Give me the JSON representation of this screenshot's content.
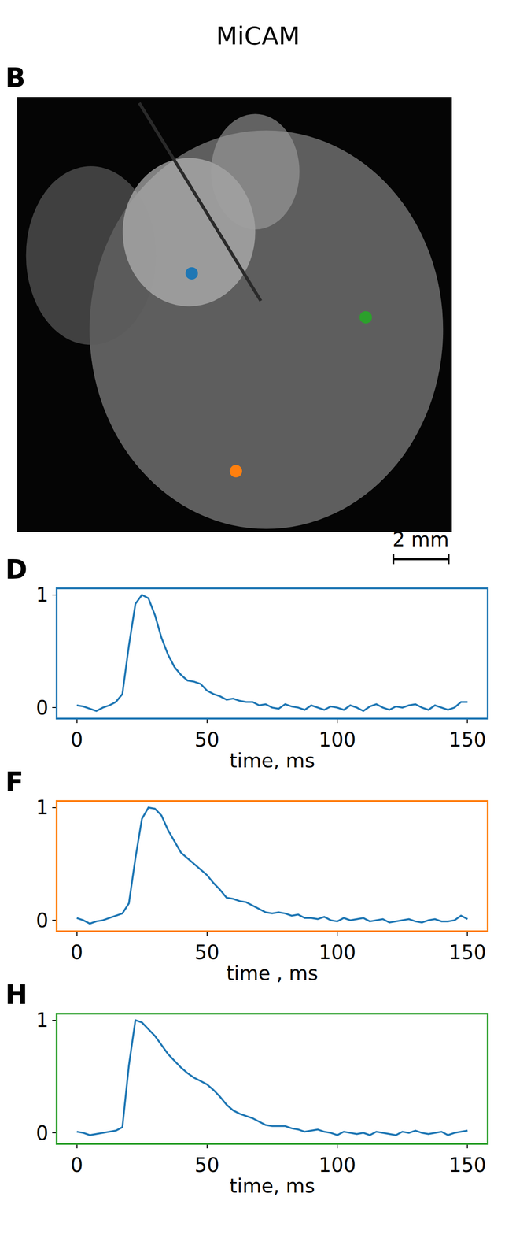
{
  "title": "MiCAM",
  "chart_data": [
    {
      "type": "scatter",
      "panel": "B",
      "xlim": [
        0,
        15.7
      ],
      "ylim": [
        15.8,
        0
      ],
      "tick_labels": false,
      "scale_bar": {
        "label": "2 mm",
        "length": 2,
        "x": 13.6
      },
      "series": [
        {
          "color": "#1f77b4",
          "x": [
            6.3
          ],
          "y": [
            6.4
          ]
        },
        {
          "color": "#ff7f0e",
          "x": [
            7.9
          ],
          "y": [
            13.6
          ]
        },
        {
          "color": "#2ca02c",
          "x": [
            12.6
          ],
          "y": [
            8.0
          ]
        }
      ]
    },
    {
      "type": "line",
      "panel": "D",
      "color": "#1f77b4",
      "xlabel": "time, ms",
      "xlim": [
        -7.4,
        157.4
      ],
      "ylim": [
        -0.09,
        1.05
      ],
      "xticks": [
        0,
        50,
        100,
        150
      ],
      "yticks": [
        0,
        1
      ],
      "x": [
        0,
        2.5,
        5,
        7.5,
        10,
        12.5,
        15,
        17.5,
        20,
        22.5,
        25,
        27.5,
        30,
        32.5,
        35,
        37.5,
        40,
        42.5,
        45,
        47.5,
        50,
        52.5,
        55,
        57.5,
        60,
        62.5,
        65,
        67.5,
        70,
        72.5,
        75,
        77.5,
        80,
        82.5,
        85,
        87.5,
        90,
        92.5,
        95,
        97.5,
        100,
        102.5,
        105,
        107.5,
        110,
        112.5,
        115,
        117.5,
        120,
        122.5,
        125,
        127.5,
        130,
        132.5,
        135,
        137.5,
        140,
        142.5,
        145,
        147.5,
        150
      ],
      "series": [
        {
          "color": "#1f77b4",
          "values": [
            0.02,
            0.01,
            -0.01,
            -0.03,
            0.0,
            0.02,
            0.05,
            0.12,
            0.55,
            0.92,
            1.0,
            0.97,
            0.82,
            0.62,
            0.47,
            0.36,
            0.29,
            0.24,
            0.23,
            0.21,
            0.15,
            0.12,
            0.1,
            0.07,
            0.08,
            0.06,
            0.05,
            0.05,
            0.02,
            0.03,
            0.0,
            -0.01,
            0.03,
            0.01,
            0.0,
            -0.02,
            0.02,
            0.0,
            -0.02,
            0.01,
            0.0,
            -0.02,
            0.02,
            0.0,
            -0.03,
            0.01,
            0.03,
            0.0,
            -0.02,
            0.01,
            0.0,
            0.02,
            0.03,
            0.0,
            -0.02,
            0.02,
            0.0,
            -0.02,
            0.0,
            0.05,
            0.05
          ]
        }
      ]
    },
    {
      "type": "line",
      "panel": "F",
      "color": "#ff7f0e",
      "xlabel": "time , ms",
      "xlim": [
        -7.4,
        157.4
      ],
      "ylim": [
        -0.09,
        1.05
      ],
      "xticks": [
        0,
        50,
        100,
        150
      ],
      "yticks": [
        0,
        1
      ],
      "x": [
        0,
        2.5,
        5,
        7.5,
        10,
        12.5,
        15,
        17.5,
        20,
        22.5,
        25,
        27.5,
        30,
        32.5,
        35,
        37.5,
        40,
        42.5,
        45,
        47.5,
        50,
        52.5,
        55,
        57.5,
        60,
        62.5,
        65,
        67.5,
        70,
        72.5,
        75,
        77.5,
        80,
        82.5,
        85,
        87.5,
        90,
        92.5,
        95,
        97.5,
        100,
        102.5,
        105,
        107.5,
        110,
        112.5,
        115,
        117.5,
        120,
        122.5,
        125,
        127.5,
        130,
        132.5,
        135,
        137.5,
        140,
        142.5,
        145,
        147.5,
        150
      ],
      "series": [
        {
          "color": "#1f77b4",
          "values": [
            0.02,
            0.0,
            -0.03,
            -0.01,
            0.0,
            0.02,
            0.04,
            0.06,
            0.15,
            0.55,
            0.9,
            1.0,
            0.99,
            0.93,
            0.8,
            0.7,
            0.6,
            0.55,
            0.5,
            0.45,
            0.4,
            0.33,
            0.27,
            0.2,
            0.19,
            0.17,
            0.16,
            0.13,
            0.1,
            0.07,
            0.06,
            0.07,
            0.06,
            0.04,
            0.05,
            0.02,
            0.02,
            0.01,
            0.03,
            0.0,
            -0.01,
            0.02,
            0.0,
            0.01,
            0.02,
            -0.01,
            0.0,
            0.01,
            -0.02,
            -0.01,
            0.0,
            0.01,
            -0.01,
            -0.02,
            0.0,
            0.01,
            -0.01,
            -0.01,
            0.0,
            0.04,
            0.01
          ]
        }
      ]
    },
    {
      "type": "line",
      "panel": "H",
      "color": "#2ca02c",
      "xlabel": "time, ms",
      "xlim": [
        -7.4,
        157.4
      ],
      "ylim": [
        -0.09,
        1.05
      ],
      "xticks": [
        0,
        50,
        100,
        150
      ],
      "yticks": [
        0,
        1
      ],
      "x": [
        0,
        2.5,
        5,
        7.5,
        10,
        12.5,
        15,
        17.5,
        20,
        22.5,
        25,
        27.5,
        30,
        32.5,
        35,
        37.5,
        40,
        42.5,
        45,
        47.5,
        50,
        52.5,
        55,
        57.5,
        60,
        62.5,
        65,
        67.5,
        70,
        72.5,
        75,
        77.5,
        80,
        82.5,
        85,
        87.5,
        90,
        92.5,
        95,
        97.5,
        100,
        102.5,
        105,
        107.5,
        110,
        112.5,
        115,
        117.5,
        120,
        122.5,
        125,
        127.5,
        130,
        132.5,
        135,
        137.5,
        140,
        142.5,
        145,
        147.5,
        150
      ],
      "series": [
        {
          "color": "#1f77b4",
          "values": [
            0.01,
            0.0,
            -0.02,
            -0.01,
            0.0,
            0.01,
            0.02,
            0.05,
            0.6,
            1.0,
            0.98,
            0.92,
            0.86,
            0.78,
            0.7,
            0.64,
            0.58,
            0.53,
            0.49,
            0.46,
            0.43,
            0.38,
            0.32,
            0.25,
            0.2,
            0.17,
            0.15,
            0.13,
            0.1,
            0.07,
            0.06,
            0.06,
            0.06,
            0.04,
            0.03,
            0.01,
            0.02,
            0.03,
            0.01,
            0.0,
            -0.02,
            0.01,
            0.0,
            -0.01,
            0.0,
            -0.02,
            0.01,
            0.0,
            -0.01,
            -0.02,
            0.01,
            0.0,
            0.02,
            0.0,
            -0.01,
            0.0,
            0.01,
            -0.02,
            0.0,
            0.01,
            0.02
          ]
        }
      ]
    }
  ]
}
